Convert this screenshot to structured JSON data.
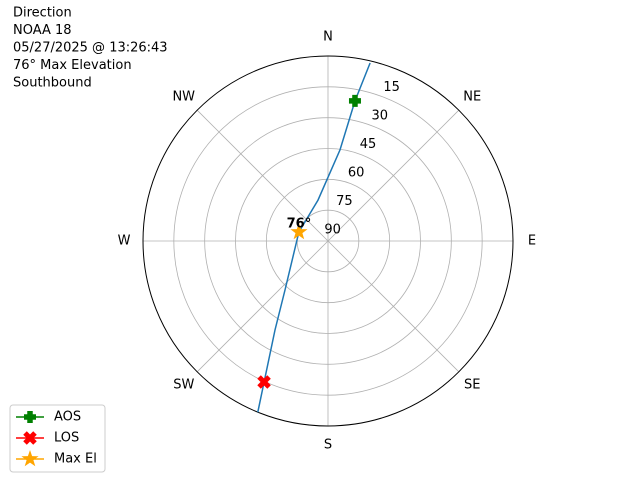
{
  "chart_data": {
    "type": "polar",
    "title_lines": [
      "Direction",
      "NOAA 18",
      "05/27/2025 @ 13:26:43",
      "76° Max Elevation",
      "Southbound"
    ],
    "theta_ticks": [
      {
        "value": 0,
        "label": "N"
      },
      {
        "value": 45,
        "label": "NE"
      },
      {
        "value": 90,
        "label": "E"
      },
      {
        "value": 135,
        "label": "SE"
      },
      {
        "value": 180,
        "label": "S"
      },
      {
        "value": 225,
        "label": "SW"
      },
      {
        "value": 270,
        "label": "W"
      },
      {
        "value": 315,
        "label": "NW"
      }
    ],
    "rlim": [
      90,
      0
    ],
    "rticks": [
      15,
      30,
      45,
      60,
      75,
      90
    ],
    "grid": true,
    "legend": "lower left",
    "annotation": "76°",
    "series": [
      {
        "color": "#1f77b4",
        "marker": "line",
        "theta": [
          13.3,
          10.9,
          7.5,
          346.3,
          287.2,
          221.3,
          210.8,
          204.4,
          202.3
        ],
        "r": [
          1,
          20.6,
          45.3,
          69.5,
          75.2,
          58.3,
          39.6,
          14.7,
          0
        ]
      },
      {
        "name": "AOS",
        "color": "#008000",
        "marker": "plus",
        "theta": [
          10.9
        ],
        "r": [
          20.6
        ]
      },
      {
        "name": "LOS",
        "color": "#ff0000",
        "marker": "x",
        "theta": [
          204.4
        ],
        "r": [
          14.7
        ]
      },
      {
        "name": "Max El",
        "color": "#ffa500",
        "marker": "star",
        "theta": [
          287.2
        ],
        "r": [
          75.2
        ]
      }
    ]
  }
}
